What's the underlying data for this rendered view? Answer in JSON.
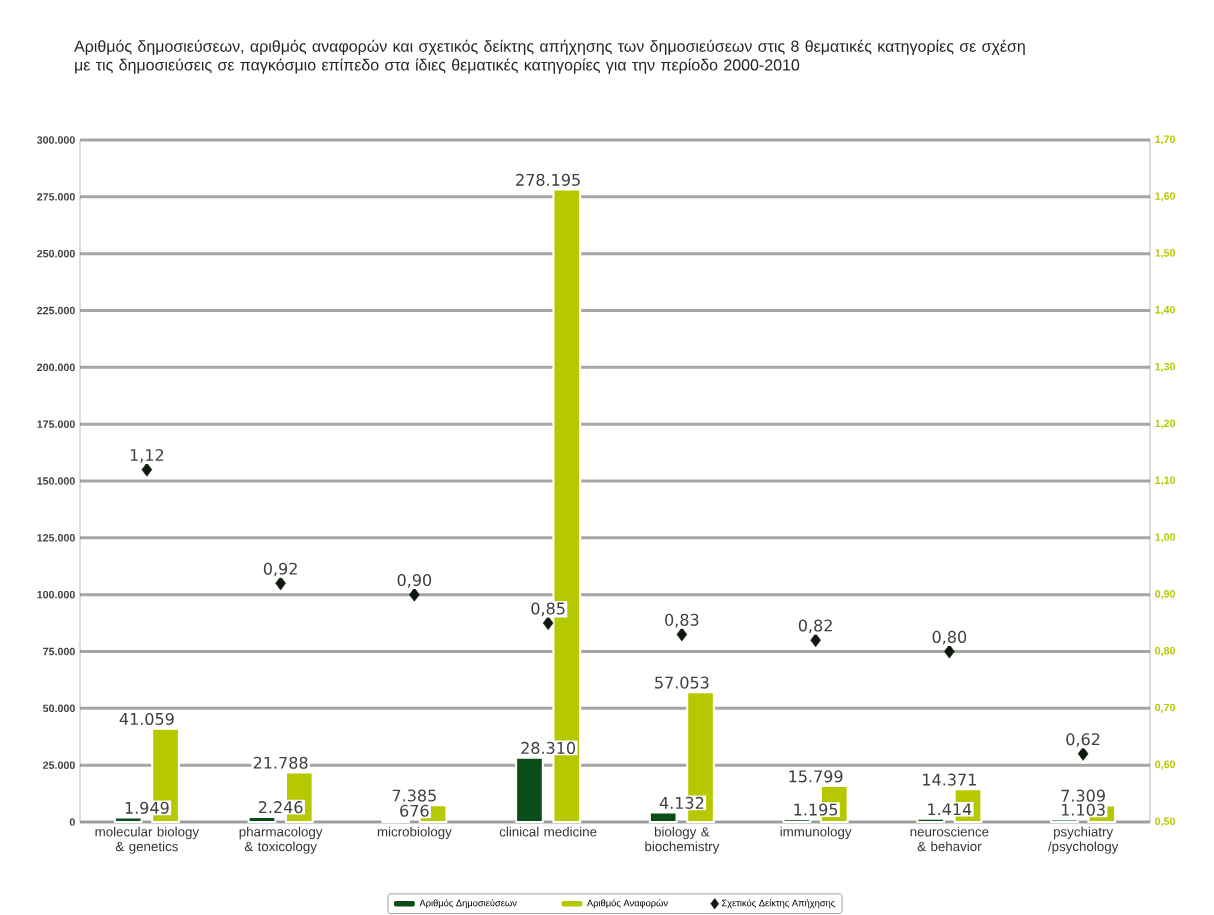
{
  "chart_data": {
    "type": "bar",
    "title": "Αριθμός δημοσιεύσεων, αριθμός αναφορών και σχετικός δείκτης απήχησης των δημοσιεύσεων στις 8 θεματικές κατηγορίες σε σχέση με τις δημοσιεύσεις σε παγκόσμιο επίπεδο στα ίδιες θεματικές κατηγορίες για την περίοδο 2000-2010",
    "categories": [
      "molecular biology & genetics",
      "pharmacology & toxicology",
      "microbiology",
      "clinical medicine",
      "biology & biochemistry",
      "immunology",
      "neuroscience & behavior",
      "psychiatry /psychology"
    ],
    "series": [
      {
        "name": "Αριθμός Δημοσιεύσεων",
        "color": "#0b4d17",
        "values": [
          1949,
          2246,
          676,
          28310,
          4132,
          1195,
          1414,
          1103
        ],
        "value_labels": [
          "1.949",
          "2.246",
          "676",
          "28.310",
          "4.132",
          "1.195",
          "1.414",
          "1.103"
        ]
      },
      {
        "name": "Αριθμός Αναφορών",
        "color": "#b5c800",
        "values": [
          41059,
          21788,
          7385,
          278195,
          57053,
          15799,
          14371,
          7309
        ],
        "value_labels": [
          "41.059",
          "21.788",
          "7.385",
          "278.195",
          "57.053",
          "15.799",
          "14.371",
          "7.309"
        ]
      },
      {
        "name": "Σχετικός Δείκτης Απήχησης",
        "type": "scatter",
        "axis": "y2",
        "marker": "diamond",
        "color": "#0d1a0d",
        "values": [
          1.12,
          0.92,
          0.9,
          0.85,
          0.83,
          0.82,
          0.8,
          0.62
        ],
        "value_labels": [
          "1,12",
          "0,92",
          "0,90",
          "0,85",
          "0,83",
          "0,82",
          "0,80",
          "0,62"
        ]
      }
    ],
    "ylim": [
      0,
      300000
    ],
    "yticks": [
      {
        "value": 0,
        "label": "0"
      },
      {
        "value": 25000,
        "label": "25.000"
      },
      {
        "value": 50000,
        "label": "50.000"
      },
      {
        "value": 75000,
        "label": "75.000"
      },
      {
        "value": 100000,
        "label": "100.000"
      },
      {
        "value": 125000,
        "label": "125.000"
      },
      {
        "value": 150000,
        "label": "150.000"
      },
      {
        "value": 175000,
        "label": "175.000"
      },
      {
        "value": 200000,
        "label": "200.000"
      },
      {
        "value": 225000,
        "label": "225.000"
      },
      {
        "value": 250000,
        "label": "250.000"
      },
      {
        "value": 275000,
        "label": "275.000"
      },
      {
        "value": 300000,
        "label": "300.000"
      }
    ],
    "y2lim": [
      0.5,
      1.7
    ],
    "y2ticks": [
      {
        "value": 0.5,
        "label": "0,50"
      },
      {
        "value": 0.6,
        "label": "0,60"
      },
      {
        "value": 0.7,
        "label": "0,70"
      },
      {
        "value": 0.8,
        "label": "0,80"
      },
      {
        "value": 0.9,
        "label": "0,90"
      },
      {
        "value": 1.0,
        "label": "1,00"
      },
      {
        "value": 1.1,
        "label": "1,10"
      },
      {
        "value": 1.2,
        "label": "1,20"
      },
      {
        "value": 1.3,
        "label": "1,30"
      },
      {
        "value": 1.4,
        "label": "1,40"
      },
      {
        "value": 1.5,
        "label": "1,50"
      },
      {
        "value": 1.6,
        "label": "1,60"
      },
      {
        "value": 1.7,
        "label": "1,70"
      }
    ],
    "grid": "y",
    "legend": "bottom"
  }
}
